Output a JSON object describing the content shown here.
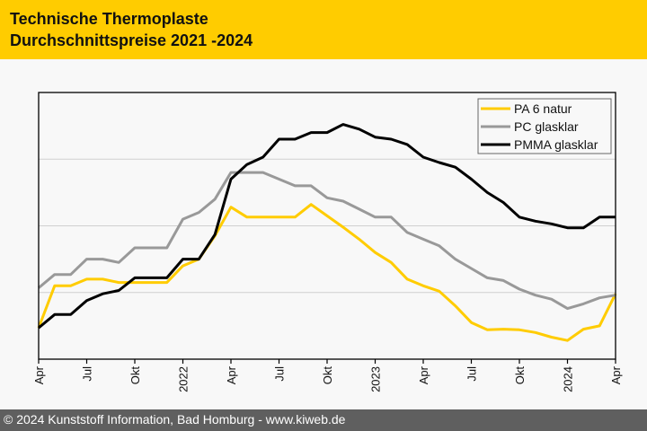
{
  "header": {
    "title_line1": "Technische Thermoplaste",
    "title_line2": "Durchschnittspreise 2021 -2024",
    "color": "#ffcc00"
  },
  "footer": {
    "text": "© 2024 Kunststoff Information, Bad Homburg - www.kiweb.de"
  },
  "chart_data": {
    "type": "line",
    "title": "Technische Thermoplaste Durchschnittspreise 2021 -2024",
    "xlabel": "",
    "ylabel": "",
    "y_axis_labels_visible": false,
    "ylim": [
      0,
      4
    ],
    "y_gridlines": [
      1,
      2,
      3
    ],
    "grid": true,
    "legend_position": "top-right",
    "x": [
      "Apr 2021",
      "Mai 2021",
      "Jun 2021",
      "Jul 2021",
      "Aug 2021",
      "Sep 2021",
      "Okt 2021",
      "Nov 2021",
      "Dez 2021",
      "Jan 2022",
      "Feb 2022",
      "Mär 2022",
      "Apr 2022",
      "Mai 2022",
      "Jun 2022",
      "Jul 2022",
      "Aug 2022",
      "Sep 2022",
      "Okt 2022",
      "Nov 2022",
      "Dez 2022",
      "Jan 2023",
      "Feb 2023",
      "Mär 2023",
      "Apr 2023",
      "Mai 2023",
      "Jun 2023",
      "Jul 2023",
      "Aug 2023",
      "Sep 2023",
      "Okt 2023",
      "Nov 2023",
      "Dez 2023",
      "Jan 2024",
      "Feb 2024",
      "Mär 2024",
      "Apr 2024"
    ],
    "x_tick_labels": [
      {
        "index": 0,
        "label": "Apr"
      },
      {
        "index": 3,
        "label": "Jul"
      },
      {
        "index": 6,
        "label": "Okt"
      },
      {
        "index": 9,
        "label": "2022"
      },
      {
        "index": 12,
        "label": "Apr"
      },
      {
        "index": 15,
        "label": "Jul"
      },
      {
        "index": 18,
        "label": "Okt"
      },
      {
        "index": 21,
        "label": "2023"
      },
      {
        "index": 24,
        "label": "Apr"
      },
      {
        "index": 27,
        "label": "Jul"
      },
      {
        "index": 30,
        "label": "Okt"
      },
      {
        "index": 33,
        "label": "2024"
      },
      {
        "index": 36,
        "label": "Apr"
      }
    ],
    "series": [
      {
        "name": "PA 6 natur",
        "color": "#ffcc00",
        "values": [
          0.47,
          1.1,
          1.1,
          1.2,
          1.2,
          1.15,
          1.15,
          1.15,
          1.15,
          1.4,
          1.5,
          1.85,
          2.28,
          2.13,
          2.13,
          2.13,
          2.13,
          2.32,
          2.15,
          1.98,
          1.8,
          1.6,
          1.45,
          1.2,
          1.1,
          1.02,
          0.8,
          0.55,
          0.44,
          0.45,
          0.44,
          0.4,
          0.33,
          0.28,
          0.45,
          0.5,
          0.98
        ]
      },
      {
        "name": "PC glasklar",
        "color": "#999999",
        "values": [
          1.07,
          1.27,
          1.27,
          1.5,
          1.5,
          1.45,
          1.67,
          1.67,
          1.67,
          2.1,
          2.2,
          2.4,
          2.8,
          2.8,
          2.8,
          2.7,
          2.6,
          2.6,
          2.42,
          2.37,
          2.25,
          2.13,
          2.13,
          1.9,
          1.8,
          1.7,
          1.5,
          1.36,
          1.22,
          1.18,
          1.05,
          0.96,
          0.9,
          0.76,
          0.83,
          0.92,
          0.96
        ]
      },
      {
        "name": "PMMA glasklar",
        "color": "#000000",
        "values": [
          0.47,
          0.67,
          0.67,
          0.88,
          0.98,
          1.03,
          1.22,
          1.22,
          1.22,
          1.5,
          1.5,
          1.87,
          2.7,
          2.92,
          3.03,
          3.3,
          3.3,
          3.4,
          3.4,
          3.52,
          3.45,
          3.33,
          3.3,
          3.22,
          3.03,
          2.95,
          2.88,
          2.7,
          2.5,
          2.35,
          2.13,
          2.07,
          2.03,
          1.97,
          1.97,
          2.13,
          2.13
        ]
      }
    ]
  }
}
